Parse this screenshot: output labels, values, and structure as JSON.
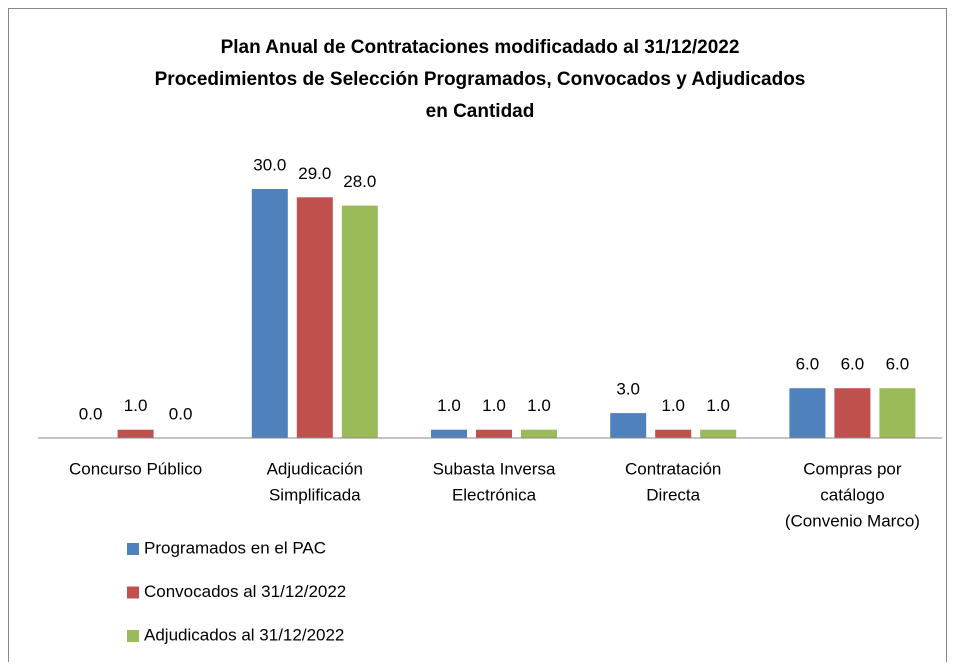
{
  "chart_data": {
    "type": "bar",
    "title": [
      "Plan Anual de Contrataciones modificadado al 31/12/2022",
      "Procedimientos de Selección Programados, Convocados y Adjudicados",
      "en Cantidad"
    ],
    "categories": [
      [
        "Concurso Público"
      ],
      [
        "Adjudicación",
        "Simplificada"
      ],
      [
        "Subasta Inversa",
        "Electrónica"
      ],
      [
        "Contratación",
        "Directa"
      ],
      [
        "Compras por",
        "catálogo",
        "(Convenio Marco)"
      ]
    ],
    "series": [
      {
        "name": "Programados en el PAC",
        "color": "#4f81bd",
        "values": [
          0,
          30,
          1,
          3,
          6
        ],
        "value_labels": [
          "0.0",
          "30.0",
          "1.0",
          "3.0",
          "6.0"
        ]
      },
      {
        "name": "Convocados al 31/12/2022",
        "color": "#c0504d",
        "values": [
          1,
          29,
          1,
          1,
          6
        ],
        "value_labels": [
          "1.0",
          "29.0",
          "1.0",
          "1.0",
          "6.0"
        ]
      },
      {
        "name": "Adjudicados al 31/12/2022",
        "color": "#9bbb59",
        "values": [
          0,
          28,
          1,
          1,
          6
        ],
        "value_labels": [
          "0.0",
          "28.0",
          "1.0",
          "1.0",
          "6.0"
        ]
      }
    ],
    "ylim": [
      0,
      30
    ],
    "legend": "bottom-left"
  }
}
